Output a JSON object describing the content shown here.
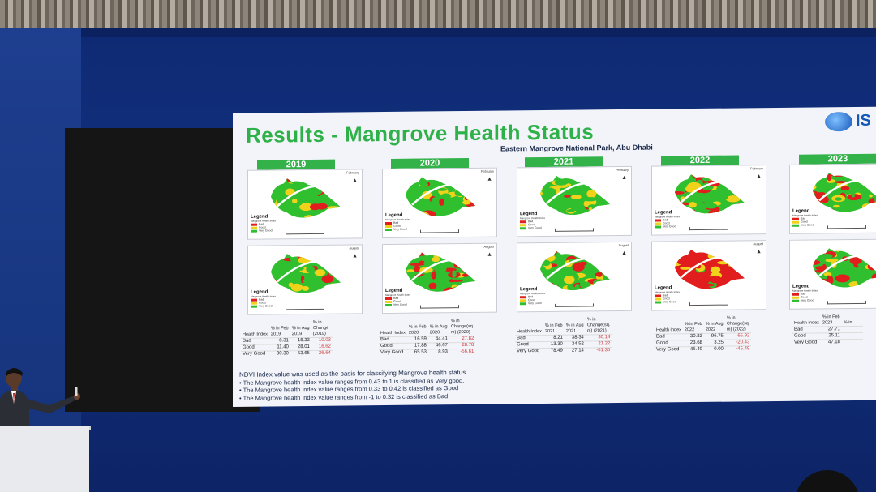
{
  "slide": {
    "title": "Results - Mangrove Health Status",
    "subtitle": "Eastern Mangrove National Park, Abu Dhabi",
    "logo_text": "IS"
  },
  "years": [
    "2019",
    "2020",
    "2021",
    "2022",
    "2023"
  ],
  "map_labels": {
    "february": "February",
    "august": "August",
    "north": "N",
    "legend_title": "Legend",
    "legend_subtitle": "Mangrove Health Index",
    "legend_items": [
      "Bad",
      "Good",
      "Very Good"
    ]
  },
  "colors": {
    "bad": "#e11d1d",
    "good": "#f0d21a",
    "very_good": "#2fbf2f",
    "title_green": "#2fb14a",
    "year_bar": "#33b24a"
  },
  "tables": [
    {
      "year": "2019",
      "headers": [
        "Health Index",
        "% in Feb 2019",
        "% in Aug 2019",
        "% in Change (2019)"
      ],
      "rows": [
        [
          "Bad",
          "8.31",
          "18.33",
          "10.03"
        ],
        [
          "Good",
          "11.40",
          "28.01",
          "16.62"
        ],
        [
          "Very Good",
          "80.30",
          "53.65",
          "-26.64"
        ]
      ]
    },
    {
      "year": "2020",
      "headers": [
        "Health Index",
        "% in Feb 2020",
        "% in Aug 2020",
        "% in Change(sq. m) (2020)"
      ],
      "rows": [
        [
          "Bad",
          "16.59",
          "44.41",
          "27.82"
        ],
        [
          "Good",
          "17.88",
          "46.67",
          "28.78"
        ],
        [
          "Very Good",
          "65.53",
          "8.93",
          "-56.61"
        ]
      ]
    },
    {
      "year": "2021",
      "headers": [
        "Health Index",
        "% in Feb 2021",
        "% in Aug 2021",
        "% in Change(sq. m) (2021)"
      ],
      "rows": [
        [
          "Bad",
          "8.21",
          "38.34",
          "30.14"
        ],
        [
          "Good",
          "13.30",
          "34.52",
          "21.22"
        ],
        [
          "Very Good",
          "78.49",
          "27.14",
          "-51.35"
        ]
      ]
    },
    {
      "year": "2022",
      "headers": [
        "Health Index",
        "% in Feb 2022",
        "% in Aug 2022",
        "% in Change(sq. m) (2022)"
      ],
      "rows": [
        [
          "Bad",
          "30.83",
          "96.75",
          "65.92"
        ],
        [
          "Good",
          "23.68",
          "3.25",
          "-20.43"
        ],
        [
          "Very Good",
          "45.49",
          "0.00",
          "-45.49"
        ]
      ]
    },
    {
      "year": "2023",
      "headers": [
        "Health Index",
        "% in Feb 2023",
        "% in"
      ],
      "rows": [
        [
          "Bad",
          "27.71",
          ""
        ],
        [
          "Good",
          "25.11",
          ""
        ],
        [
          "Very Good",
          "47.18",
          ""
        ]
      ]
    }
  ],
  "notes": [
    "NDVI Index value was used as the basis for classifying Mangrove health status.",
    "•   The Mangrove health index value ranges from 0.43  to 1  is classified as Very good.",
    "•   The Mangrove health index value ranges from  0.33 to 0.42 is classified as  Good",
    "•   The Mangrove health index value ranges from -1 to 0.32 is classified as  Bad."
  ]
}
